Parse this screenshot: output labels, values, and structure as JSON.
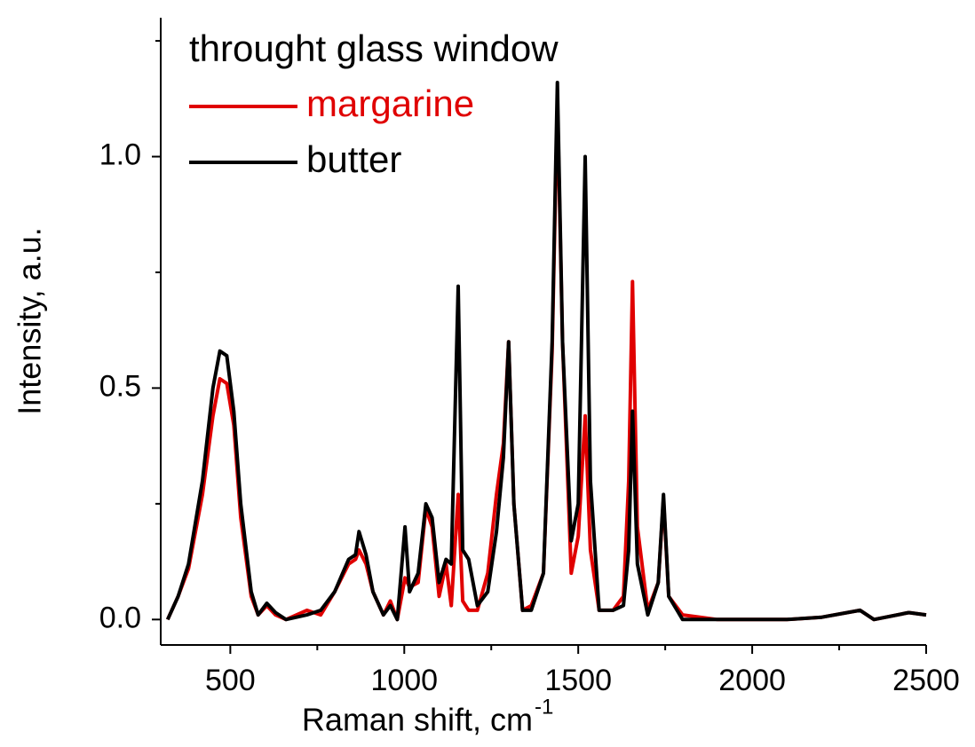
{
  "chart_data": {
    "type": "line",
    "legend_title": "throught glass window",
    "x_label": "Raman shift, cm",
    "x_label_sup": "-1",
    "y_label": "Intensity, a.u.",
    "xlim": [
      300,
      2500
    ],
    "ylim": [
      -0.055,
      1.3
    ],
    "xticks": [
      500,
      1000,
      1500,
      2000,
      2500
    ],
    "x_minor_ticks": [
      750,
      1250,
      1750,
      2250
    ],
    "yticks": [
      {
        "value": 0,
        "label": "0.0"
      },
      {
        "value": 0.5,
        "label": "0.5"
      },
      {
        "value": 1,
        "label": "1.0"
      }
    ],
    "y_minor_ticks": [
      0.25,
      0.75,
      1.25
    ],
    "legend": "upper left",
    "x": [
      320,
      350,
      380,
      420,
      450,
      470,
      490,
      510,
      530,
      560,
      580,
      605,
      630,
      660,
      720,
      760,
      800,
      840,
      860,
      870,
      890,
      910,
      940,
      960,
      980,
      1002,
      1015,
      1040,
      1062,
      1080,
      1100,
      1120,
      1135,
      1155,
      1168,
      1185,
      1210,
      1240,
      1265,
      1285,
      1300,
      1315,
      1340,
      1365,
      1400,
      1425,
      1440,
      1455,
      1480,
      1500,
      1520,
      1535,
      1560,
      1600,
      1630,
      1645,
      1656,
      1670,
      1700,
      1730,
      1745,
      1760,
      1800,
      1900,
      2000,
      2100,
      2200,
      2310,
      2350,
      2450,
      2500
    ],
    "series": [
      {
        "name": "margarine",
        "color": "#e00000",
        "values": [
          0,
          0.05,
          0.11,
          0.27,
          0.44,
          0.52,
          0.51,
          0.42,
          0.22,
          0.05,
          0.01,
          0.03,
          0.01,
          0,
          0.02,
          0.01,
          0.06,
          0.12,
          0.13,
          0.15,
          0.12,
          0.06,
          0.01,
          0.04,
          0,
          0.09,
          0.07,
          0.08,
          0.24,
          0.2,
          0.05,
          0.12,
          0.03,
          0.27,
          0.04,
          0.02,
          0.02,
          0.1,
          0.27,
          0.38,
          0.6,
          0.25,
          0.02,
          0.03,
          0.1,
          0.58,
          1.12,
          0.6,
          0.1,
          0.18,
          0.44,
          0.15,
          0.02,
          0.02,
          0.05,
          0.3,
          0.73,
          0.2,
          0.02,
          0.08,
          0.26,
          0.05,
          0.01,
          0,
          0,
          0,
          0.005,
          0.02,
          0,
          0.015,
          0.01
        ]
      },
      {
        "name": "butter",
        "color": "#000000",
        "values": [
          0,
          0.05,
          0.12,
          0.3,
          0.5,
          0.58,
          0.57,
          0.45,
          0.25,
          0.06,
          0.01,
          0.035,
          0.015,
          0,
          0.01,
          0.02,
          0.06,
          0.13,
          0.14,
          0.19,
          0.14,
          0.06,
          0.01,
          0.03,
          0,
          0.2,
          0.06,
          0.1,
          0.25,
          0.22,
          0.08,
          0.13,
          0.12,
          0.72,
          0.15,
          0.13,
          0.03,
          0.06,
          0.19,
          0.35,
          0.6,
          0.25,
          0.02,
          0.02,
          0.1,
          0.6,
          1.16,
          0.6,
          0.17,
          0.25,
          1,
          0.3,
          0.02,
          0.02,
          0.03,
          0.15,
          0.45,
          0.12,
          0.01,
          0.08,
          0.27,
          0.05,
          0,
          0,
          0,
          0,
          0.005,
          0.02,
          0,
          0.015,
          0.01
        ]
      }
    ]
  }
}
